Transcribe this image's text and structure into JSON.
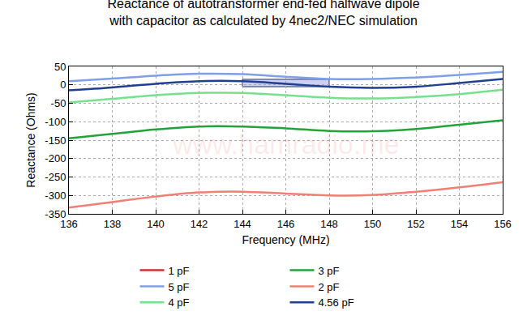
{
  "chart_data": {
    "type": "line",
    "title": "Reactance of autotransformer end-fed halfwave dipole\nwith capacitor as calculated by 4nec2/NEC simulation",
    "x_label": "Frequency (MHz)",
    "y_label": "Reactance (Ohms)",
    "annotations": [
      "www.hamradio.me"
    ],
    "x": [
      136,
      138,
      140,
      142,
      144,
      146,
      148,
      150,
      152,
      154,
      156
    ],
    "series": [
      {
        "name": "1 pF",
        "color": "#d62f2f",
        "values": [
          null,
          null,
          null,
          null,
          null,
          null,
          null,
          null,
          null,
          null,
          null
        ]
      },
      {
        "name": "2 pF",
        "color": "#f07f75",
        "values": [
          -333,
          -318,
          -303,
          -292,
          -290,
          -295,
          -300,
          -299,
          -290,
          -278,
          -264
        ]
      },
      {
        "name": "3 pF",
        "color": "#22a33a",
        "values": [
          -145,
          -133,
          -121,
          -113,
          -113,
          -118,
          -125,
          -126,
          -120,
          -108,
          -96
        ]
      },
      {
        "name": "4 pF",
        "color": "#77e08e",
        "values": [
          -48,
          -38,
          -28,
          -22,
          -22,
          -28,
          -35,
          -37,
          -33,
          -25,
          -13
        ]
      },
      {
        "name": "5 pF",
        "color": "#7f9fe8",
        "values": [
          10,
          17,
          25,
          30,
          29,
          22,
          16,
          16,
          20,
          27,
          35
        ]
      },
      {
        "name": "4.56 pF",
        "color": "#1f3f8f",
        "values": [
          -15,
          -7,
          3,
          10,
          10,
          3,
          -5,
          -8,
          -5,
          5,
          16
        ]
      }
    ],
    "band": {
      "x": [
        144,
        148
      ],
      "y": [
        -5,
        15
      ]
    },
    "xlim": [
      136,
      156
    ],
    "xticks": [
      136,
      138,
      140,
      142,
      144,
      146,
      148,
      150,
      152,
      154,
      156
    ],
    "ylim": [
      -350,
      50
    ],
    "yticks": [
      -350,
      -300,
      -250,
      -200,
      -150,
      -100,
      -50,
      0,
      50
    ],
    "grid": true,
    "legend": "bottom"
  }
}
